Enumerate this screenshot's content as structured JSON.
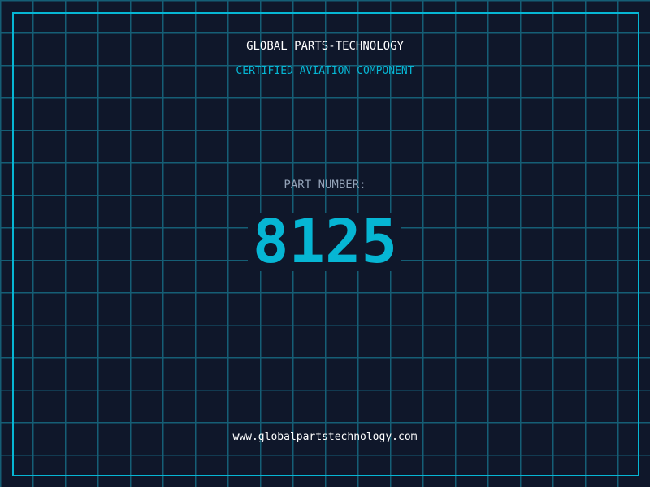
{
  "header": {
    "title": "GLOBAL PARTS-TECHNOLOGY",
    "subtitle": "CERTIFIED AVIATION COMPONENT"
  },
  "part": {
    "label": "PART NUMBER:",
    "number": "8125"
  },
  "footer": {
    "url": "www.globalpartstechnology.com"
  },
  "colors": {
    "background": "#0f172a",
    "accent": "#06b6d4",
    "grid": "#155e75"
  }
}
